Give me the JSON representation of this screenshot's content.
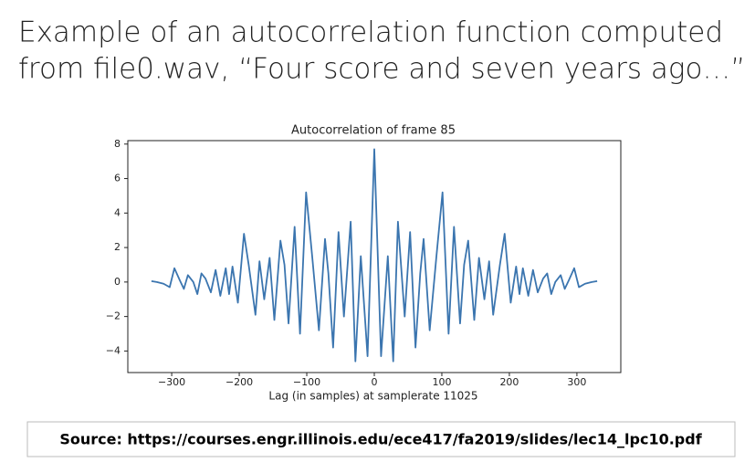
{
  "slide_title": [
    "Example of an autocorrelation function computed",
    "from file0.wav, “Four score and seven years ago…”"
  ],
  "source": "Source: https://courses.engr.illinois.edu/ece417/fa2019/slides/lec14_lpc10.pdf",
  "chart_data": {
    "type": "line",
    "title": "Autocorrelation of frame 85",
    "x_label": "Lag (in samples) at samplerate 11025",
    "color": "#3b75af",
    "x": [
      -330,
      -322,
      -312,
      -303,
      -296,
      -288,
      -282,
      -276,
      -268,
      -262,
      -256,
      -250,
      -242,
      -235,
      -228,
      -220,
      -215,
      -210,
      -202,
      -193,
      -186,
      -176,
      -170,
      -163,
      -155,
      -148,
      -139,
      -133,
      -127,
      -118,
      -110,
      -101,
      -92,
      -82,
      -73,
      -68,
      -61,
      -53,
      -45,
      -35,
      -28,
      -20,
      -10,
      0,
      10,
      20,
      28,
      35,
      45,
      53,
      61,
      68,
      73,
      82,
      92,
      101,
      110,
      118,
      127,
      133,
      139,
      148,
      155,
      163,
      170,
      176,
      186,
      193,
      202,
      210,
      215,
      220,
      228,
      235,
      242,
      250,
      256,
      262,
      268,
      276,
      282,
      288,
      296,
      303,
      312,
      322,
      330
    ],
    "values": [
      0.05,
      0.0,
      -0.1,
      -0.3,
      0.8,
      0.1,
      -0.4,
      0.4,
      0.0,
      -0.7,
      0.5,
      0.2,
      -0.6,
      0.7,
      -0.8,
      0.8,
      -0.7,
      0.9,
      -1.2,
      2.8,
      1.0,
      -1.9,
      1.2,
      -1.0,
      1.4,
      -2.2,
      2.4,
      1.0,
      -2.4,
      3.2,
      -3.0,
      5.2,
      1.5,
      -2.8,
      2.5,
      0.5,
      -3.8,
      2.9,
      -2.0,
      3.5,
      -4.6,
      1.5,
      -4.3,
      7.7,
      -4.3,
      1.5,
      -4.6,
      3.5,
      -2.0,
      2.9,
      -3.8,
      0.5,
      2.5,
      -2.8,
      1.5,
      5.2,
      -3.0,
      3.2,
      -2.4,
      1.0,
      2.4,
      -2.2,
      1.4,
      -1.0,
      1.2,
      -1.9,
      1.0,
      2.8,
      -1.2,
      0.9,
      -0.7,
      0.8,
      -0.8,
      0.7,
      -0.6,
      0.2,
      0.5,
      -0.7,
      0.0,
      0.4,
      -0.4,
      0.1,
      0.8,
      -0.3,
      -0.1,
      0.0,
      0.05
    ],
    "xlim": [
      -365,
      365
    ],
    "ylim": [
      -5.25,
      8.2
    ],
    "xticks": [
      {
        "value": -300,
        "label": "−300"
      },
      {
        "value": -200,
        "label": "−200"
      },
      {
        "value": -100,
        "label": "−100"
      },
      0,
      100,
      200,
      300
    ],
    "yticks": [
      {
        "value": -4,
        "label": "−4"
      },
      {
        "value": -2,
        "label": "−2"
      },
      0,
      2,
      4,
      6,
      8
    ],
    "grid": false
  }
}
